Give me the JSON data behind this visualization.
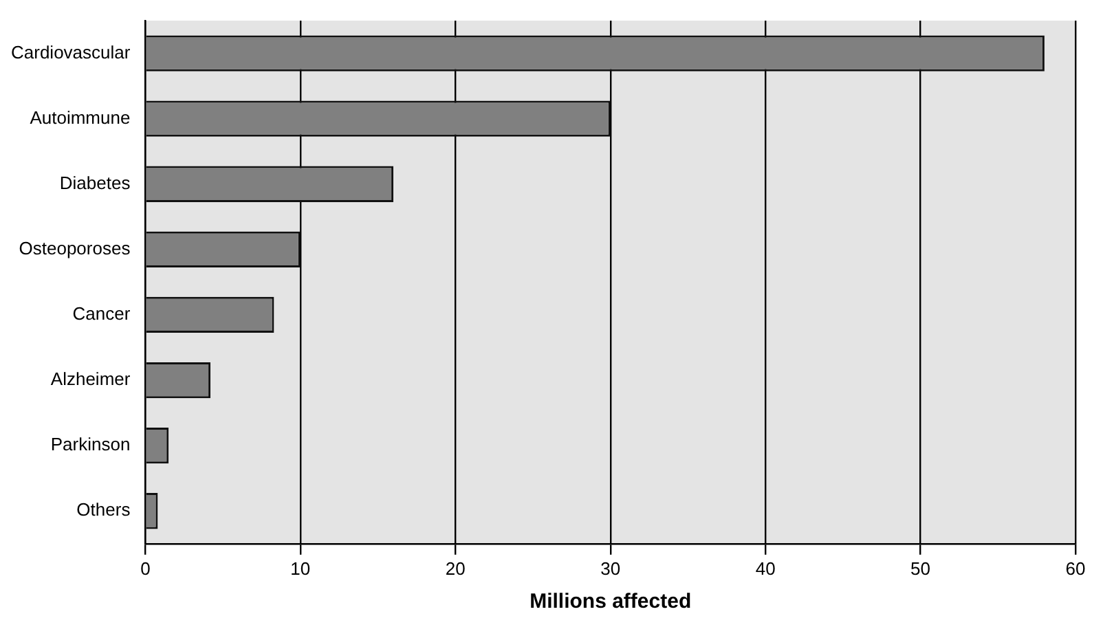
{
  "chart_data": {
    "type": "bar",
    "orientation": "horizontal",
    "xlabel": "Millions affected",
    "categories": [
      "Cardiovascular",
      "Autoimmune",
      "Diabetes",
      "Osteoporoses",
      "Cancer",
      "Alzheimer",
      "Parkinson",
      "Others"
    ],
    "values": [
      58,
      30,
      16,
      10,
      8.3,
      4.2,
      1.5,
      0.8
    ],
    "color": "#808080",
    "xlim": [
      0,
      60
    ],
    "xticks": [
      0,
      10,
      20,
      30,
      40,
      50,
      60
    ],
    "grid": "x",
    "legend": false
  }
}
